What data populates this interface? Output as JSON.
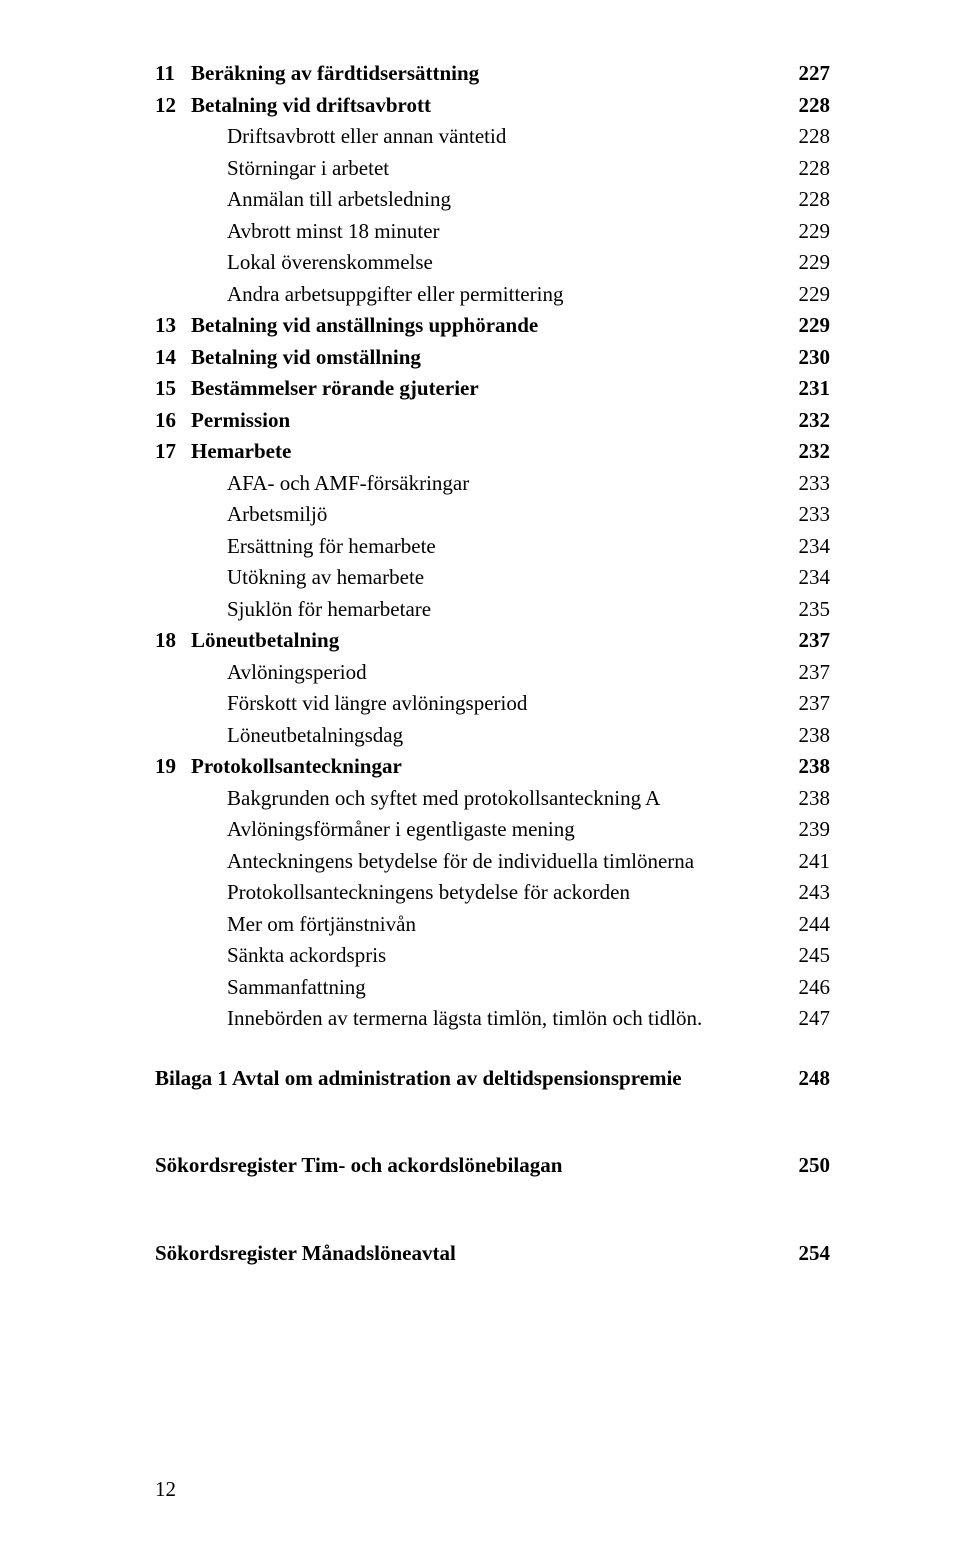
{
  "entries": [
    {
      "num": "11",
      "label": "Beräkning av färdtidsersättning",
      "page": "227",
      "bold": true
    },
    {
      "num": "12",
      "label": "Betalning vid driftsavbrott",
      "page": "228",
      "bold": true
    },
    {
      "label": "Driftsavbrott eller annan väntetid",
      "page": "228",
      "sub": true
    },
    {
      "label": "Störningar i arbetet",
      "page": "228",
      "sub": true
    },
    {
      "label": "Anmälan till arbetsledning",
      "page": "228",
      "sub": true
    },
    {
      "label": "Avbrott minst 18 minuter",
      "page": "229",
      "sub": true
    },
    {
      "label": "Lokal överenskommelse",
      "page": "229",
      "sub": true
    },
    {
      "label": "Andra arbetsuppgifter eller permittering",
      "page": "229",
      "sub": true
    },
    {
      "num": "13",
      "label": "Betalning vid anställnings upphörande",
      "page": "229",
      "bold": true
    },
    {
      "num": "14",
      "label": "Betalning vid omställning",
      "page": "230",
      "bold": true
    },
    {
      "num": "15",
      "label": "Bestämmelser rörande gjuterier",
      "page": "231",
      "bold": true
    },
    {
      "num": "16",
      "label": "Permission",
      "page": "232",
      "bold": true
    },
    {
      "num": "17",
      "label": "Hemarbete",
      "page": "232",
      "bold": true
    },
    {
      "label": "AFA- och AMF-försäkringar",
      "page": "233",
      "sub": true
    },
    {
      "label": "Arbetsmiljö",
      "page": "233",
      "sub": true
    },
    {
      "label": "Ersättning för hemarbete",
      "page": "234",
      "sub": true
    },
    {
      "label": "Utökning av hemarbete",
      "page": "234",
      "sub": true
    },
    {
      "label": "Sjuklön för hemarbetare",
      "page": "235",
      "sub": true
    },
    {
      "num": "18",
      "label": "Löneutbetalning",
      "page": "237",
      "bold": true
    },
    {
      "label": "Avlöningsperiod",
      "page": "237",
      "sub": true
    },
    {
      "label": "Förskott vid längre avlöningsperiod",
      "page": "237",
      "sub": true
    },
    {
      "label": "Löneutbetalningsdag",
      "page": "238",
      "sub": true
    },
    {
      "num": "19",
      "label": "Protokollsanteckningar",
      "page": "238",
      "bold": true
    },
    {
      "label": "Bakgrunden och syftet med protokollsanteckning A",
      "page": "238",
      "sub": true
    },
    {
      "label": "Avlöningsförmåner i egentligaste mening",
      "page": "239",
      "sub": true
    },
    {
      "label": "Anteckningens betydelse för de individuella timlönerna",
      "page": "241",
      "sub": true
    },
    {
      "label": "Protokollsanteckningens betydelse för ackorden",
      "page": "243",
      "sub": true
    },
    {
      "label": "Mer om förtjänstnivån",
      "page": "244",
      "sub": true
    },
    {
      "label": "Sänkta ackordspris",
      "page": "245",
      "sub": true
    },
    {
      "label": "Sammanfattning",
      "page": "246",
      "sub": true
    },
    {
      "label": "Innebörden av termerna lägsta timlön, timlön och tidlön.",
      "page": "247",
      "sub": true
    },
    {
      "label": "Bilaga 1 Avtal om administration av deltidspensionspremie",
      "page": "248",
      "bold": true,
      "gap": true,
      "flat": true
    },
    {
      "label": "Sökordsregister Tim- och ackordslönebilagan",
      "page": "250",
      "bold": true,
      "gap": true,
      "biggap": true,
      "flat": true
    },
    {
      "label": "Sökordsregister Månadslöneavtal",
      "page": "254",
      "bold": true,
      "gap": true,
      "biggap": true,
      "flat": true
    }
  ],
  "footerPage": "12"
}
